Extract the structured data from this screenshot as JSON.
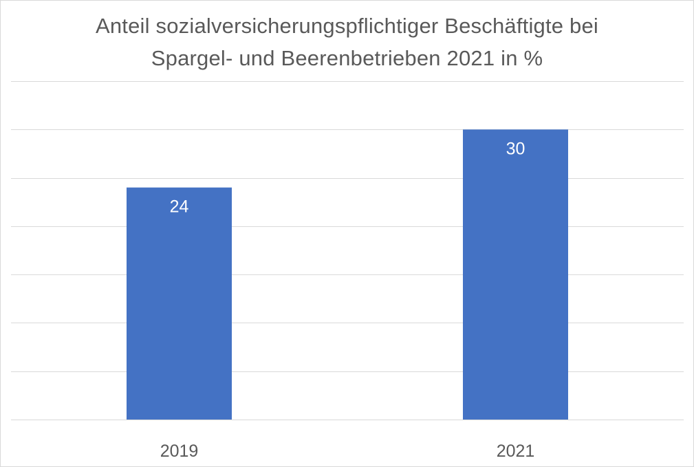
{
  "chart_data": {
    "type": "bar",
    "title_line1": "Anteil sozialversicherungspflichtiger Beschäftigte bei",
    "title_line2": "Spargel- und Beerenbetrieben 2021 in %",
    "categories": [
      "2019",
      "2021"
    ],
    "values": [
      24,
      30
    ],
    "data_labels": [
      "24",
      "30"
    ],
    "xlabel": "",
    "ylabel": "",
    "ylim": [
      0,
      35
    ],
    "grid": true,
    "legend": "none",
    "colors": {
      "bar": "#4472c4",
      "grid": "#d9d9d9",
      "text": "#595959",
      "data_label": "#ffffff",
      "border": "#d9d9d9"
    }
  }
}
